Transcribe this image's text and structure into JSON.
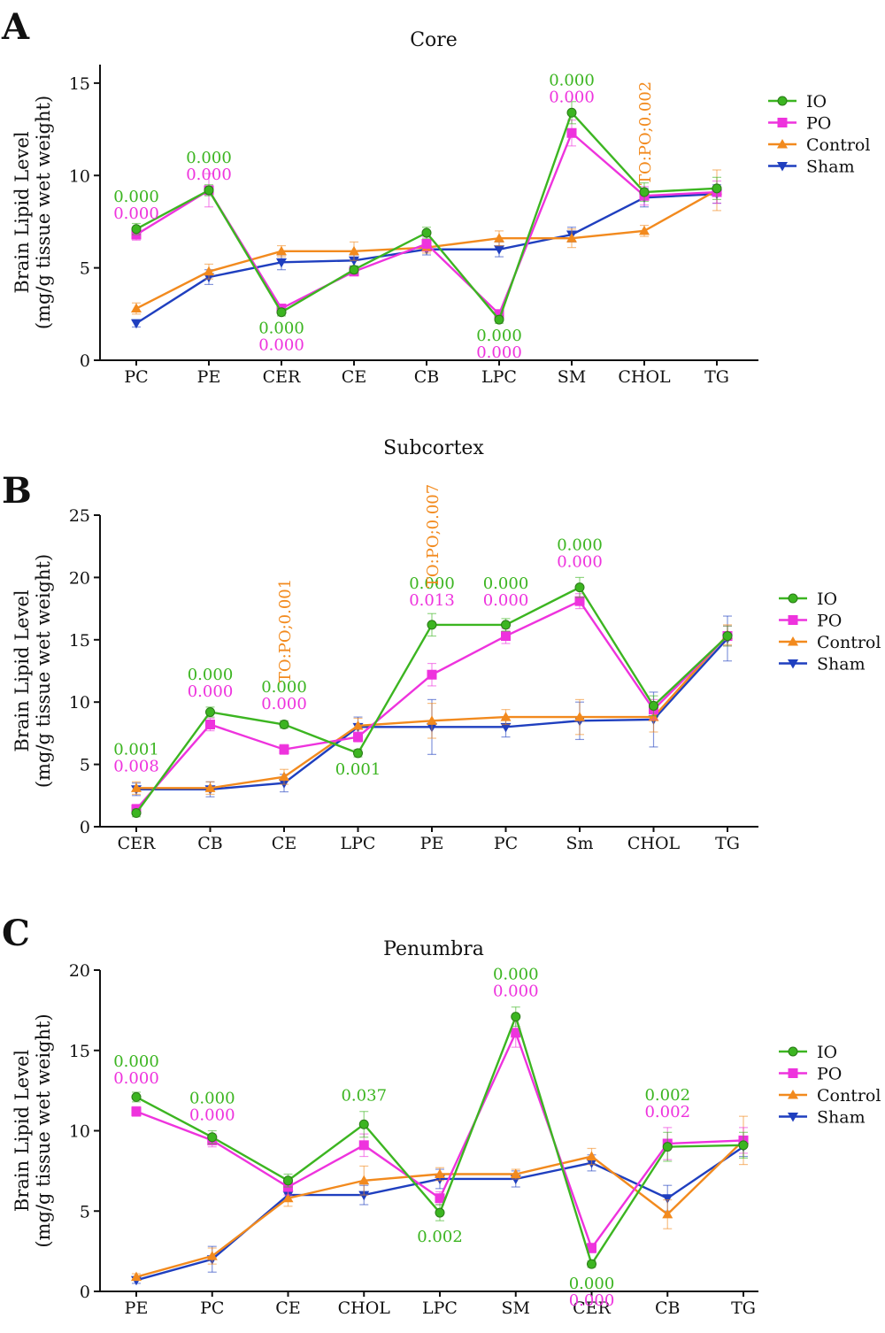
{
  "colors": {
    "IO": "#3cb521",
    "PO": "#ee33dd",
    "Control": "#f28a1e",
    "Sham": "#1f3fbf",
    "axis": "#111111"
  },
  "chart_data": [
    {
      "panel": "A",
      "type": "line",
      "title": "Core",
      "ylabel": [
        "Brain Lipid Level",
        "(mg/g tissue wet weight)"
      ],
      "xlabel": "",
      "ylim": [
        0,
        16
      ],
      "yticks": [
        0,
        5,
        10,
        15
      ],
      "categories": [
        "PC",
        "PE",
        "CER",
        "CE",
        "CB",
        "LPC",
        "SM",
        "CHOL",
        "TG"
      ],
      "series": [
        {
          "name": "IO",
          "marker": "circle",
          "values": [
            7.1,
            9.2,
            2.6,
            4.9,
            6.9,
            2.2,
            13.4,
            9.1,
            9.3
          ],
          "err": [
            0.3,
            0.3,
            0.2,
            0.2,
            0.3,
            0.2,
            0.6,
            0.5,
            0.6
          ]
        },
        {
          "name": "PO",
          "marker": "square",
          "values": [
            6.8,
            9.2,
            2.8,
            4.8,
            6.3,
            2.5,
            12.3,
            8.9,
            9.1
          ],
          "err": [
            0.3,
            0.9,
            0.2,
            0.2,
            0.4,
            0.2,
            0.7,
            0.5,
            0.6
          ]
        },
        {
          "name": "Control",
          "marker": "triangle-up",
          "values": [
            2.8,
            4.8,
            5.9,
            5.9,
            6.1,
            6.6,
            6.6,
            7.0,
            9.2
          ],
          "err": [
            0.3,
            0.4,
            0.3,
            0.5,
            0.3,
            0.4,
            0.5,
            0.3,
            1.1
          ]
        },
        {
          "name": "Sham",
          "marker": "triangle-down",
          "values": [
            2.0,
            4.5,
            5.3,
            5.4,
            6.0,
            6.0,
            6.8,
            8.8,
            9.0
          ],
          "err": [
            0.2,
            0.4,
            0.4,
            0.3,
            0.3,
            0.4,
            0.4,
            0.5,
            0.5
          ]
        }
      ],
      "annotations": [
        {
          "cat": 0,
          "lines": [
            {
              "text": "0.000",
              "series": "IO"
            },
            {
              "text": "0.000",
              "series": "PO"
            }
          ],
          "pos": "above",
          "anchor": 7.1
        },
        {
          "cat": 1,
          "lines": [
            {
              "text": "0.000",
              "series": "IO"
            },
            {
              "text": "0.000",
              "series": "PO"
            }
          ],
          "pos": "above",
          "anchor": 9.2
        },
        {
          "cat": 2,
          "lines": [
            {
              "text": "0.000",
              "series": "IO"
            },
            {
              "text": "0.000",
              "series": "PO"
            }
          ],
          "pos": "below",
          "anchor": 2.6
        },
        {
          "cat": 5,
          "lines": [
            {
              "text": "0.000",
              "series": "IO"
            },
            {
              "text": "0.000",
              "series": "PO"
            }
          ],
          "pos": "below",
          "anchor": 2.2
        },
        {
          "cat": 6,
          "lines": [
            {
              "text": "0.000",
              "series": "IO"
            },
            {
              "text": "0.000",
              "series": "PO"
            }
          ],
          "pos": "above",
          "anchor": 13.4
        },
        {
          "cat": 7,
          "lines": [
            {
              "text": "TO:PO;0.002",
              "series": "Control"
            }
          ],
          "pos": "vertical",
          "anchor": 9.1
        }
      ],
      "legend": [
        "IO",
        "PO",
        "Control",
        "Sham"
      ],
      "legend_position": "right"
    },
    {
      "panel": "B",
      "type": "line",
      "title": "Subcortex",
      "ylabel": [
        "Brain Lipid Level",
        "(mg/g tissue wet weight)"
      ],
      "xlabel": "",
      "ylim": [
        0,
        25
      ],
      "yticks": [
        0,
        5,
        10,
        15,
        20,
        25
      ],
      "categories": [
        "CER",
        "CB",
        "CE",
        "LPC",
        "PE",
        "PC",
        "Sm",
        "CHOL",
        "TG"
      ],
      "series": [
        {
          "name": "IO",
          "marker": "circle",
          "values": [
            1.1,
            9.2,
            8.2,
            5.9,
            16.2,
            16.2,
            19.2,
            9.7,
            15.3
          ],
          "err": [
            0.3,
            0.4,
            0.3,
            0.3,
            0.9,
            0.5,
            0.8,
            0.8,
            0.8
          ]
        },
        {
          "name": "PO",
          "marker": "square",
          "values": [
            1.4,
            8.2,
            6.2,
            7.2,
            12.2,
            15.3,
            18.1,
            9.4,
            15.3
          ],
          "err": [
            0.4,
            0.5,
            0.4,
            0.4,
            0.9,
            0.6,
            0.6,
            0.8,
            0.8
          ]
        },
        {
          "name": "Control",
          "marker": "triangle-up",
          "values": [
            3.1,
            3.1,
            4.0,
            8.1,
            8.5,
            8.8,
            8.8,
            8.8,
            15.4
          ],
          "err": [
            0.5,
            0.5,
            0.6,
            0.6,
            1.4,
            0.6,
            1.4,
            1.2,
            0.8
          ]
        },
        {
          "name": "Sham",
          "marker": "triangle-down",
          "values": [
            3.0,
            3.0,
            3.5,
            8.0,
            8.0,
            8.0,
            8.5,
            8.6,
            15.1
          ],
          "err": [
            0.5,
            0.6,
            0.7,
            0.8,
            2.2,
            0.8,
            1.5,
            2.2,
            1.8
          ]
        }
      ],
      "annotations": [
        {
          "cat": 0,
          "lines": [
            {
              "text": "0.001",
              "series": "IO"
            },
            {
              "text": "0.008",
              "series": "PO"
            }
          ],
          "pos": "above",
          "anchor": 3.6
        },
        {
          "cat": 1,
          "lines": [
            {
              "text": "0.000",
              "series": "IO"
            },
            {
              "text": "0.000",
              "series": "PO"
            }
          ],
          "pos": "above",
          "anchor": 9.6
        },
        {
          "cat": 2,
          "lines": [
            {
              "text": "0.000",
              "series": "IO"
            },
            {
              "text": "0.000",
              "series": "PO"
            }
          ],
          "pos": "above",
          "anchor": 8.6
        },
        {
          "cat": 2,
          "lines": [
            {
              "text": "TO:PO;0.001",
              "series": "Control"
            }
          ],
          "pos": "vertical",
          "anchor": 11.0
        },
        {
          "cat": 3,
          "lines": [
            {
              "text": "0.001",
              "series": "IO"
            }
          ],
          "pos": "below",
          "anchor": 5.9
        },
        {
          "cat": 4,
          "lines": [
            {
              "text": "0.000",
              "series": "IO"
            },
            {
              "text": "0.013",
              "series": "PO"
            }
          ],
          "pos": "above",
          "anchor": 16.9
        },
        {
          "cat": 4,
          "lines": [
            {
              "text": "TO:PO;0.007",
              "series": "Control"
            }
          ],
          "pos": "vertical",
          "anchor": 18.6
        },
        {
          "cat": 5,
          "lines": [
            {
              "text": "0.000",
              "series": "IO"
            },
            {
              "text": "0.000",
              "series": "PO"
            }
          ],
          "pos": "above",
          "anchor": 16.9
        },
        {
          "cat": 6,
          "lines": [
            {
              "text": "0.000",
              "series": "IO"
            },
            {
              "text": "0.000",
              "series": "PO"
            }
          ],
          "pos": "above",
          "anchor": 20.0
        }
      ],
      "legend": [
        "IO",
        "PO",
        "Control",
        "Sham"
      ],
      "legend_position": "right"
    },
    {
      "panel": "C",
      "type": "line",
      "title": "Penumbra",
      "ylabel": [
        "Brain Lipid Level",
        "(mg/g tissue wet weight)"
      ],
      "xlabel": "",
      "ylim": [
        0,
        20
      ],
      "yticks": [
        0,
        5,
        10,
        15,
        20
      ],
      "categories": [
        "PE",
        "PC",
        "CE",
        "CHOL",
        "LPC",
        "SM",
        "CER",
        "CB",
        "TG"
      ],
      "series": [
        {
          "name": "IO",
          "marker": "circle",
          "values": [
            12.1,
            9.6,
            6.9,
            10.4,
            4.9,
            17.1,
            1.7,
            9.0,
            9.1
          ],
          "err": [
            0.3,
            0.4,
            0.4,
            0.8,
            0.5,
            0.6,
            0.2,
            0.9,
            0.8
          ]
        },
        {
          "name": "PO",
          "marker": "square",
          "values": [
            11.2,
            9.4,
            6.5,
            9.1,
            5.8,
            16.1,
            2.7,
            9.2,
            9.4
          ],
          "err": [
            0.3,
            0.4,
            0.5,
            0.7,
            0.4,
            0.9,
            0.3,
            1.0,
            0.8
          ]
        },
        {
          "name": "Control",
          "marker": "triangle-up",
          "values": [
            0.9,
            2.2,
            5.8,
            6.9,
            7.3,
            7.3,
            8.4,
            4.8,
            9.4
          ],
          "err": [
            0.2,
            0.5,
            0.5,
            0.9,
            0.4,
            0.3,
            0.5,
            0.9,
            1.5
          ]
        },
        {
          "name": "Sham",
          "marker": "triangle-down",
          "values": [
            0.7,
            2.0,
            6.0,
            6.0,
            7.0,
            7.0,
            8.0,
            5.8,
            9.0
          ],
          "err": [
            0.2,
            0.8,
            0.4,
            0.6,
            0.6,
            0.5,
            0.5,
            0.8,
            0.6
          ]
        }
      ],
      "annotations": [
        {
          "cat": 0,
          "lines": [
            {
              "text": "0.000",
              "series": "IO"
            },
            {
              "text": "0.000",
              "series": "PO"
            }
          ],
          "pos": "above",
          "anchor": 12.3
        },
        {
          "cat": 1,
          "lines": [
            {
              "text": "0.000",
              "series": "IO"
            },
            {
              "text": "0.000",
              "series": "PO"
            }
          ],
          "pos": "above",
          "anchor": 10.0
        },
        {
          "cat": 3,
          "lines": [
            {
              "text": "0.037",
              "series": "IO"
            }
          ],
          "pos": "above",
          "anchor": 11.2
        },
        {
          "cat": 4,
          "lines": [
            {
              "text": "0.002",
              "series": "IO"
            }
          ],
          "pos": "below",
          "anchor": 4.4
        },
        {
          "cat": 5,
          "lines": [
            {
              "text": "0.000",
              "series": "IO"
            },
            {
              "text": "0.000",
              "series": "PO"
            }
          ],
          "pos": "above",
          "anchor": 17.7
        },
        {
          "cat": 6,
          "lines": [
            {
              "text": "0.000",
              "series": "IO"
            },
            {
              "text": "0.000",
              "series": "PO"
            }
          ],
          "pos": "below",
          "anchor": 1.5
        },
        {
          "cat": 7,
          "lines": [
            {
              "text": "0.002",
              "series": "IO"
            },
            {
              "text": "0.002",
              "series": "PO"
            }
          ],
          "pos": "above",
          "anchor": 10.2
        }
      ],
      "legend": [
        "IO",
        "PO",
        "Control",
        "Sham"
      ],
      "legend_position": "right"
    }
  ]
}
